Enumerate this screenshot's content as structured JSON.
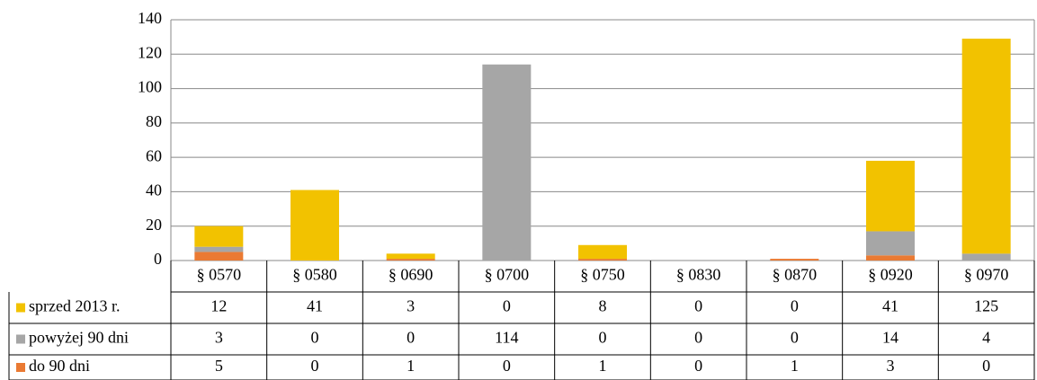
{
  "chart_data": {
    "type": "stacked_bar",
    "categories": [
      "§ 0570",
      "§ 0580",
      "§ 0690",
      "§ 0700",
      "§ 0750",
      "§ 0830",
      "§ 0870",
      "§ 0920",
      "§ 0970"
    ],
    "series": [
      {
        "name": "sprzed 2013 r.",
        "color": "#f2c200",
        "values": [
          12,
          41,
          3,
          0,
          8,
          0,
          0,
          41,
          125
        ]
      },
      {
        "name": "powyżej 90 dni",
        "color": "#a6a6a6",
        "values": [
          3,
          0,
          0,
          114,
          0,
          0,
          0,
          14,
          4
        ]
      },
      {
        "name": "do 90 dni",
        "color": "#ea7a33",
        "values": [
          5,
          0,
          1,
          0,
          1,
          0,
          1,
          3,
          0
        ]
      }
    ],
    "ylim": [
      0,
      140
    ],
    "yticks": [
      0,
      20,
      40,
      60,
      80,
      100,
      120,
      140
    ],
    "grid": true
  }
}
